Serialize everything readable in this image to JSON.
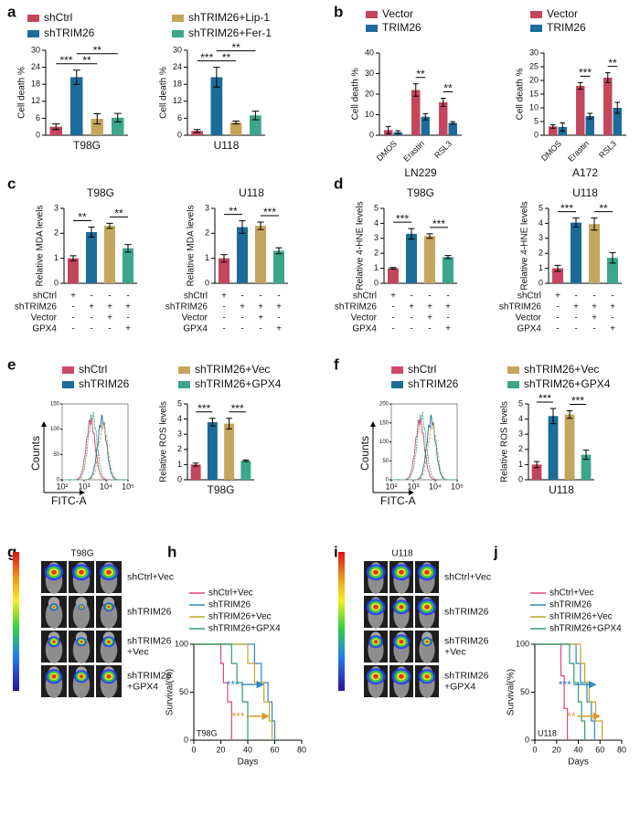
{
  "panels": [
    {
      "label": "a",
      "legend": [
        {
          "name": "shCtrl",
          "color": "#c4465c"
        },
        {
          "name": "shTRIM26",
          "color": "#1c6c99"
        },
        {
          "name": "shTRIM26+Lip-1",
          "color": "#c4a55c"
        },
        {
          "name": "shTRIM26+Fer-1",
          "color": "#3ba68a"
        }
      ]
    },
    {
      "label": "b"
    },
    {
      "label": "c"
    },
    {
      "label": "d"
    },
    {
      "label": "e",
      "legend": [
        {
          "name": "shCtrl",
          "color": "#d2486a"
        },
        {
          "name": "shTRIM26",
          "color": "#1c6c99"
        },
        {
          "name": "shTRIM26+Vec",
          "color": "#c4a55c"
        },
        {
          "name": "shTRIM26+GPX4",
          "color": "#3ba68a"
        }
      ]
    },
    {
      "label": "f",
      "legend": [
        {
          "name": "shCtrl",
          "color": "#d2486a"
        },
        {
          "name": "shTRIM26",
          "color": "#1c6c99"
        },
        {
          "name": "shTRIM26+Vec",
          "color": "#c4a55c"
        },
        {
          "name": "shTRIM26+GPX4",
          "color": "#3ba68a"
        }
      ]
    },
    {
      "label": "g"
    },
    {
      "label": "h"
    },
    {
      "label": "i"
    },
    {
      "label": "j"
    }
  ],
  "images": [
    {
      "title": "T98G",
      "rows": [
        [
          "shCtrl+Vec"
        ],
        [
          "shTRIM26"
        ],
        [
          "shTRIM26",
          "+Vec"
        ],
        [
          "shTRIM26",
          "+GPX4"
        ]
      ]
    },
    {
      "title": "U118",
      "rows": [
        [
          "shCtrl+Vec"
        ],
        [
          "shTRIM26"
        ],
        [
          "shTRIM26",
          "+Vec"
        ],
        [
          "shTRIM26",
          "+GPX4"
        ]
      ]
    }
  ],
  "chart_data": [
    {
      "type": "bar",
      "ylabel": "Cell death %",
      "xlabel": "T98G",
      "ylim": [
        0,
        30
      ],
      "yticks": [
        0,
        6,
        12,
        18,
        24,
        30
      ],
      "values": [
        3,
        20.5,
        5.8,
        6.2
      ],
      "errors": [
        1,
        2.5,
        1.8,
        1.5
      ],
      "colors": [
        "#c4465c",
        "#1c6c99",
        "#c4a55c",
        "#3ba68a"
      ],
      "annotations": [
        {
          "text": "***",
          "pair": [
            0,
            1
          ]
        },
        {
          "text": "**",
          "pair": [
            1,
            2
          ]
        },
        {
          "text": "**",
          "pair": [
            1,
            3
          ]
        }
      ]
    },
    {
      "type": "bar",
      "ylabel": "Cell death %",
      "xlabel": "U118",
      "ylim": [
        0,
        30
      ],
      "yticks": [
        0,
        6,
        12,
        18,
        24,
        30
      ],
      "values": [
        1.5,
        20.5,
        4.5,
        7
      ],
      "errors": [
        0.5,
        3.5,
        0.5,
        1.5
      ],
      "colors": [
        "#c4465c",
        "#1c6c99",
        "#c4a55c",
        "#3ba68a"
      ],
      "annotations": [
        {
          "text": "***",
          "pair": [
            0,
            1
          ]
        },
        {
          "text": "**",
          "pair": [
            1,
            2
          ]
        },
        {
          "text": "**",
          "pair": [
            1,
            3
          ]
        }
      ]
    },
    {
      "type": "bar",
      "ylabel": "Cell death %",
      "xlabel": "LN229",
      "ylim": [
        0,
        40
      ],
      "yticks": [
        0,
        10,
        20,
        30,
        40
      ],
      "categories": [
        "DMOS",
        "Erastin",
        "RSL3"
      ],
      "series": [
        {
          "name": "Vector",
          "color": "#c4465c",
          "values": [
            2.5,
            22,
            16
          ],
          "errors": [
            1.8,
            3,
            2
          ]
        },
        {
          "name": "TRIM26",
          "color": "#1c6c99",
          "values": [
            1.5,
            9,
            6
          ],
          "errors": [
            0.7,
            1.5,
            0.6
          ]
        }
      ],
      "annotations": [
        {
          "text": "**",
          "category": 1
        },
        {
          "text": "**",
          "category": 2
        }
      ]
    },
    {
      "type": "bar",
      "ylabel": "Cell death %",
      "xlabel": "A172",
      "ylim": [
        0,
        30
      ],
      "yticks": [
        0,
        5,
        10,
        15,
        20,
        25,
        30
      ],
      "categories": [
        "DMOS",
        "Erastin",
        "RSL3"
      ],
      "series": [
        {
          "name": "Vector",
          "color": "#c4465c",
          "values": [
            3.2,
            18,
            21
          ],
          "errors": [
            0.6,
            1.2,
            1.8
          ]
        },
        {
          "name": "TRIM26",
          "color": "#1c6c99",
          "values": [
            3,
            7,
            10
          ],
          "errors": [
            1.5,
            1,
            2
          ]
        }
      ],
      "annotations": [
        {
          "text": "***",
          "category": 1
        },
        {
          "text": "**",
          "category": 2
        }
      ]
    },
    {
      "type": "bar",
      "title": "T98G",
      "ylabel": "Relative MDA levels",
      "ylim": [
        0,
        3
      ],
      "yticks": [
        0,
        1,
        2,
        3
      ],
      "values": [
        1,
        2.05,
        2.3,
        1.4
      ],
      "errors": [
        0.1,
        0.2,
        0.1,
        0.15
      ],
      "colors": [
        "#c4465c",
        "#1c6c99",
        "#c4a55c",
        "#3ba68a"
      ],
      "annotations": [
        {
          "text": "**",
          "pair": [
            0,
            1
          ]
        },
        {
          "text": "**",
          "pair": [
            2,
            3
          ]
        }
      ],
      "conditions": {
        "rows": [
          "shCtrl",
          "shTRIM26",
          "Vector",
          "GPX4"
        ],
        "signs": [
          [
            "+",
            "-",
            "-",
            "-"
          ],
          [
            "-",
            "+",
            "+",
            "+"
          ],
          [
            "-",
            "-",
            "+",
            "-"
          ],
          [
            "-",
            "-",
            "-",
            "+"
          ]
        ]
      }
    },
    {
      "type": "bar",
      "title": "U118",
      "ylabel": "Relative MDA levels",
      "ylim": [
        0,
        3
      ],
      "yticks": [
        0,
        1,
        2,
        3
      ],
      "values": [
        1,
        2.25,
        2.3,
        1.3
      ],
      "errors": [
        0.15,
        0.25,
        0.15,
        0.12
      ],
      "colors": [
        "#c4465c",
        "#1c6c99",
        "#c4a55c",
        "#3ba68a"
      ],
      "annotations": [
        {
          "text": "**",
          "pair": [
            0,
            1
          ]
        },
        {
          "text": "***",
          "pair": [
            2,
            3
          ]
        }
      ],
      "conditions": {
        "rows": [
          "shCtrl",
          "shTRIM26",
          "Vector",
          "GPX4"
        ],
        "signs": [
          [
            "+",
            "-",
            "-",
            "-"
          ],
          [
            "-",
            "+",
            "+",
            "+"
          ],
          [
            "-",
            "-",
            "+",
            "-"
          ],
          [
            "-",
            "-",
            "-",
            "+"
          ]
        ]
      }
    },
    {
      "type": "bar",
      "title": "T98G",
      "ylabel": "Relative 4-HNE levels",
      "ylim": [
        0,
        5
      ],
      "yticks": [
        0,
        1,
        2,
        3,
        4,
        5
      ],
      "values": [
        1,
        3.3,
        3.15,
        1.75
      ],
      "errors": [
        0.05,
        0.35,
        0.15,
        0.1
      ],
      "colors": [
        "#c4465c",
        "#1c6c99",
        "#c4a55c",
        "#3ba68a"
      ],
      "annotations": [
        {
          "text": "***",
          "pair": [
            0,
            1
          ]
        },
        {
          "text": "***",
          "pair": [
            2,
            3
          ]
        }
      ],
      "conditions": {
        "rows": [
          "shCtrl",
          "shTRIM26",
          "Vector",
          "GPX4"
        ],
        "signs": [
          [
            "+",
            "-",
            "-",
            "-"
          ],
          [
            "-",
            "+",
            "+",
            "+"
          ],
          [
            "-",
            "-",
            "+",
            "-"
          ],
          [
            "-",
            "-",
            "-",
            "+"
          ]
        ]
      }
    },
    {
      "type": "bar",
      "title": "U118",
      "ylabel": "Relative 4-HNE levels",
      "ylim": [
        0,
        5
      ],
      "yticks": [
        0,
        1,
        2,
        3,
        4,
        5
      ],
      "values": [
        1,
        4.05,
        3.95,
        1.7
      ],
      "errors": [
        0.2,
        0.3,
        0.4,
        0.35
      ],
      "colors": [
        "#c4465c",
        "#1c6c99",
        "#c4a55c",
        "#3ba68a"
      ],
      "annotations": [
        {
          "text": "***",
          "pair": [
            0,
            1
          ]
        },
        {
          "text": "**",
          "pair": [
            2,
            3
          ]
        }
      ],
      "conditions": {
        "rows": [
          "shCtrl",
          "shTRIM26",
          "Vector",
          "GPX4"
        ],
        "signs": [
          [
            "+",
            "-",
            "-",
            "-"
          ],
          [
            "-",
            "+",
            "+",
            "+"
          ],
          [
            "-",
            "-",
            "+",
            "-"
          ],
          [
            "-",
            "-",
            "-",
            "+"
          ]
        ]
      }
    },
    {
      "type": "flow",
      "ylabel": "Counts",
      "xlabel": "FITC-A",
      "log_x": true,
      "xlim": [
        100,
        100000
      ],
      "xticks": [
        {
          "value": 100,
          "label": "10²"
        },
        {
          "value": 1000,
          "label": "10³"
        },
        {
          "value": 10000,
          "label": "10⁴"
        },
        {
          "value": 100000,
          "label": "10⁵"
        }
      ],
      "ylim": [
        0,
        150
      ],
      "yticks": [
        0,
        50,
        100,
        150
      ]
    },
    {
      "type": "bar",
      "ylabel": "Relative ROS levels",
      "xlabel": "T98G",
      "ylim": [
        0,
        5
      ],
      "yticks": [
        0,
        1,
        2,
        3,
        4,
        5
      ],
      "values": [
        1,
        3.8,
        3.7,
        1.25
      ],
      "errors": [
        0.1,
        0.25,
        0.35,
        0.05
      ],
      "colors": [
        "#c4465c",
        "#1c6c99",
        "#c4a55c",
        "#3ba68a"
      ],
      "annotations": [
        {
          "text": "***",
          "pair": [
            0,
            1
          ]
        },
        {
          "text": "***",
          "pair": [
            2,
            3
          ]
        }
      ]
    },
    {
      "type": "flow",
      "ylabel": "Counts",
      "xlabel": "FITC-A",
      "log_x": true,
      "xlim": [
        100,
        100000
      ],
      "xticks": [
        {
          "value": 100,
          "label": "10²"
        },
        {
          "value": 1000,
          "label": "10³"
        },
        {
          "value": 10000,
          "label": "10⁴"
        },
        {
          "value": 100000,
          "label": "10⁵"
        }
      ],
      "ylim": [
        0,
        200
      ],
      "yticks": [
        0,
        50,
        100,
        150,
        200
      ]
    },
    {
      "type": "bar",
      "ylabel": "Relative ROS levels",
      "xlabel": "U118",
      "ylim": [
        0,
        5
      ],
      "yticks": [
        0,
        1,
        2,
        3,
        4,
        5
      ],
      "values": [
        1,
        4.2,
        4.3,
        1.65
      ],
      "errors": [
        0.2,
        0.5,
        0.25,
        0.3
      ],
      "colors": [
        "#c4465c",
        "#1c6c99",
        "#c4a55c",
        "#3ba68a"
      ],
      "annotations": [
        {
          "text": "***",
          "pair": [
            0,
            1
          ]
        },
        {
          "text": "***",
          "pair": [
            2,
            3
          ]
        }
      ]
    },
    {
      "type": "survival",
      "ylabel": "Survival(%)",
      "xlabel": "Days",
      "inset_label": "T98G",
      "xlim": [
        0,
        80
      ],
      "xticks": [
        0,
        20,
        40,
        60,
        80
      ],
      "ylim": [
        0,
        100
      ],
      "yticks": [
        0,
        50,
        100
      ],
      "series": [
        {
          "name": "shCtrl+Vec",
          "color": "#e0457b",
          "x": [
            0,
            20,
            20,
            22,
            22,
            25,
            25,
            28,
            28
          ],
          "values": [
            100,
            100,
            80,
            80,
            60,
            60,
            40,
            40,
            0
          ]
        },
        {
          "name": "shTRIM26",
          "color": "#2b86c5",
          "x": [
            0,
            45,
            45,
            50,
            50,
            55,
            55,
            58,
            58,
            60,
            60
          ],
          "values": [
            100,
            100,
            80,
            80,
            60,
            60,
            40,
            40,
            20,
            20,
            0
          ]
        },
        {
          "name": "shTRIM26+Vec",
          "color": "#c9a227",
          "x": [
            0,
            40,
            40,
            45,
            45,
            52,
            52,
            56,
            56,
            58,
            58
          ],
          "values": [
            100,
            100,
            80,
            80,
            60,
            60,
            40,
            40,
            20,
            20,
            0
          ]
        },
        {
          "name": "shTRIM26+GPX4",
          "color": "#2e9e6e",
          "x": [
            0,
            28,
            28,
            32,
            32,
            36,
            36,
            40,
            40
          ],
          "values": [
            100,
            100,
            80,
            80,
            60,
            60,
            40,
            40,
            0
          ]
        }
      ],
      "annotations": [
        {
          "text": "***",
          "color": "#2b86c5"
        },
        {
          "text": "***",
          "color": "#d99a2b"
        }
      ]
    },
    {
      "type": "survival",
      "ylabel": "Survival(%)",
      "xlabel": "Days",
      "inset_label": "U118",
      "xlim": [
        0,
        80
      ],
      "xticks": [
        0,
        20,
        40,
        60,
        80
      ],
      "ylim": [
        0,
        100
      ],
      "yticks": [
        0,
        50,
        100
      ],
      "series": [
        {
          "name": "shCtrl+Vec",
          "color": "#e0457b",
          "x": [
            0,
            24,
            24,
            27,
            27,
            30,
            30
          ],
          "values": [
            100,
            100,
            67,
            67,
            33,
            33,
            0
          ]
        },
        {
          "name": "shTRIM26",
          "color": "#2b86c5",
          "x": [
            0,
            38,
            38,
            42,
            42,
            48,
            48,
            52,
            52,
            55,
            55
          ],
          "values": [
            100,
            100,
            80,
            80,
            60,
            60,
            40,
            40,
            20,
            20,
            0
          ]
        },
        {
          "name": "shTRIM26+Vec",
          "color": "#c9a227",
          "x": [
            0,
            42,
            42,
            46,
            46,
            50,
            50,
            56,
            56,
            62,
            62
          ],
          "values": [
            100,
            100,
            80,
            80,
            60,
            60,
            40,
            40,
            20,
            20,
            0
          ]
        },
        {
          "name": "shTRIM26+GPX4",
          "color": "#2e9e6e",
          "x": [
            0,
            32,
            32,
            36,
            36,
            40,
            40,
            43,
            43,
            46,
            46
          ],
          "values": [
            100,
            100,
            80,
            80,
            60,
            60,
            40,
            40,
            20,
            20,
            0
          ]
        }
      ],
      "annotations": [
        {
          "text": "***",
          "color": "#2b86c5"
        },
        {
          "text": "**",
          "color": "#d99a2b"
        }
      ]
    }
  ]
}
